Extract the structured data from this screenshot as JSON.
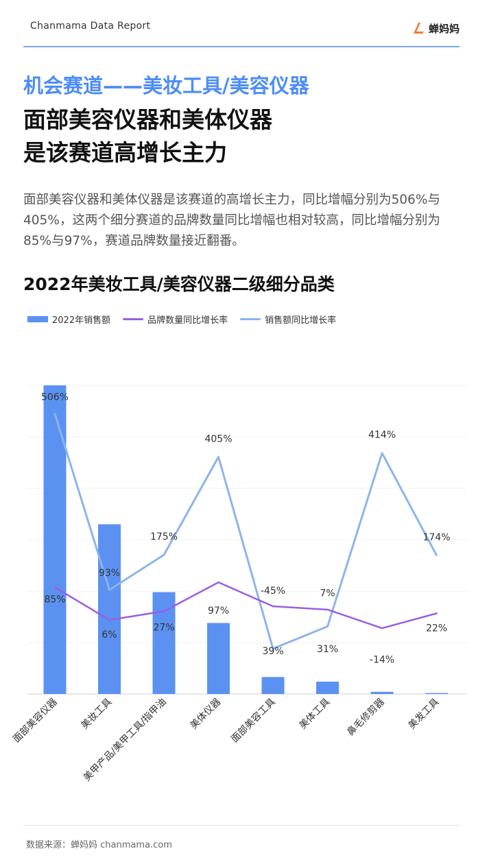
{
  "header": {
    "brand_text": "Chanmama Data Report",
    "logo_text": "蝉妈妈"
  },
  "title": {
    "line1": "机会赛道——美妆工具/美容仪器",
    "line2": "面部美容仪器和美体仪器",
    "line3": "是该赛道高增长主力"
  },
  "summary": "面部美容仪器和美体仪器是该赛道的高增长主力，同比增幅分别为506%与405%，这两个细分赛道的品牌数量同比增幅也相对较高，同比增幅分别为85%与97%，赛道品牌数量接近翻番。",
  "footer": {
    "source": "数据来源：蝉妈妈 chanmama.com"
  },
  "colors": {
    "accent": "#4c8df6",
    "bar": "#5b92f2",
    "brand_line": "#9b5de5",
    "sales_line": "#8cb4ee",
    "rule": "#7aa6ee"
  },
  "chart_data": {
    "type": "bar",
    "title": "2022年美妆工具/美容仪器二级细分品类",
    "categories": [
      "面部美容仪器",
      "美妆工具",
      "美甲产品/美甲工具/指甲油",
      "美体仪器",
      "面部美容工具",
      "美体工具",
      "鼻毛修剪器",
      "美发工具"
    ],
    "series": [
      {
        "name": "2022年销售额",
        "kind": "bar",
        "values": [
          100,
          55,
          33,
          23,
          5.5,
          4,
          0.7,
          0.3
        ]
      },
      {
        "name": "品牌数量同比增长率",
        "kind": "line",
        "labels": [
          "85%",
          "6%",
          "27%",
          "97%",
          "39%",
          "31%",
          "-14%",
          "22%"
        ],
        "values": [
          85,
          6,
          27,
          97,
          39,
          31,
          -14,
          22
        ]
      },
      {
        "name": "销售额同比增长率",
        "kind": "line",
        "labels": [
          "506%",
          "93%",
          "175%",
          "405%",
          "-45%",
          "7%",
          "414%",
          "174%"
        ],
        "values": [
          506,
          93,
          175,
          405,
          -45,
          7,
          414,
          174
        ]
      }
    ],
    "grid": true,
    "legend_position": "top-left"
  }
}
